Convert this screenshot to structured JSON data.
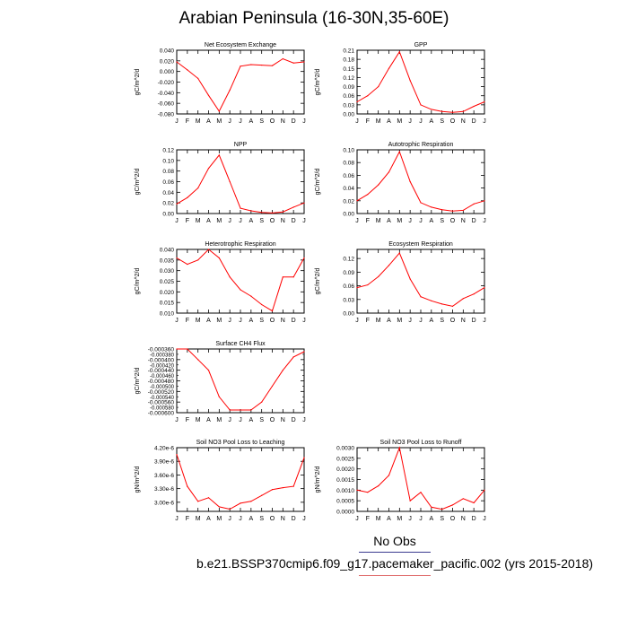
{
  "title": "Arabian Peninsula (16-30N,35-60E)",
  "legend": {
    "obs_label": "No Obs",
    "case_label": "b.e21.BSSP370cmip6.f09_g17.pacemaker_pacific.002 (yrs 2015-2018)"
  },
  "colors": {
    "series": "#ff0000",
    "axis": "#000000"
  },
  "months": [
    "J",
    "F",
    "M",
    "A",
    "M",
    "J",
    "J",
    "A",
    "S",
    "O",
    "N",
    "D",
    "J"
  ],
  "chart_data": [
    {
      "type": "line",
      "title": "Net Ecosystem Exchange",
      "ylabel": "gC/m^2/d",
      "ylim": [
        -0.08,
        0.04
      ],
      "yticks": [
        -0.08,
        -0.06,
        -0.04,
        -0.02,
        0.0,
        0.02,
        0.04
      ],
      "ytick_labels": [
        "-0.080",
        "-0.060",
        "-0.040",
        "-0.020",
        "0.000",
        "0.020",
        "0.040"
      ],
      "x": [
        "J",
        "F",
        "M",
        "A",
        "M",
        "J",
        "J",
        "A",
        "S",
        "O",
        "N",
        "D",
        "J"
      ],
      "values": [
        0.018,
        0.003,
        -0.013,
        -0.045,
        -0.075,
        -0.035,
        0.01,
        0.013,
        0.012,
        0.011,
        0.024,
        0.016,
        0.018
      ]
    },
    {
      "type": "line",
      "title": "GPP",
      "ylabel": "gC/m^2/d",
      "ylim": [
        0.0,
        0.21
      ],
      "yticks": [
        0.0,
        0.03,
        0.06,
        0.09,
        0.12,
        0.15,
        0.18,
        0.21
      ],
      "ytick_labels": [
        "0.00",
        "0.03",
        "0.06",
        "0.09",
        "0.12",
        "0.15",
        "0.18",
        "0.21"
      ],
      "x": [
        "J",
        "F",
        "M",
        "A",
        "M",
        "J",
        "J",
        "A",
        "S",
        "O",
        "N",
        "D",
        "J"
      ],
      "values": [
        0.04,
        0.06,
        0.09,
        0.15,
        0.205,
        0.11,
        0.03,
        0.015,
        0.008,
        0.005,
        0.008,
        0.025,
        0.04
      ]
    },
    {
      "type": "line",
      "title": "NPP",
      "ylabel": "gC/m^2/d",
      "ylim": [
        0.0,
        0.12
      ],
      "yticks": [
        0.0,
        0.02,
        0.04,
        0.06,
        0.08,
        0.1,
        0.12
      ],
      "ytick_labels": [
        "0.00",
        "0.02",
        "0.04",
        "0.06",
        "0.08",
        "0.10",
        "0.12"
      ],
      "x": [
        "J",
        "F",
        "M",
        "A",
        "M",
        "J",
        "J",
        "A",
        "S",
        "O",
        "N",
        "D",
        "J"
      ],
      "values": [
        0.018,
        0.03,
        0.048,
        0.085,
        0.11,
        0.06,
        0.01,
        0.005,
        0.002,
        0.001,
        0.003,
        0.012,
        0.02
      ]
    },
    {
      "type": "line",
      "title": "Autotrophic Respiration",
      "ylabel": "gC/m^2/d",
      "ylim": [
        0.0,
        0.1
      ],
      "yticks": [
        0.0,
        0.02,
        0.04,
        0.06,
        0.08,
        0.1
      ],
      "ytick_labels": [
        "0.00",
        "0.02",
        "0.04",
        "0.06",
        "0.08",
        "0.10"
      ],
      "x": [
        "J",
        "F",
        "M",
        "A",
        "M",
        "J",
        "J",
        "A",
        "S",
        "O",
        "N",
        "D",
        "J"
      ],
      "values": [
        0.02,
        0.03,
        0.045,
        0.065,
        0.097,
        0.05,
        0.017,
        0.01,
        0.006,
        0.004,
        0.005,
        0.015,
        0.02
      ]
    },
    {
      "type": "line",
      "title": "Heterotrophic Respiration",
      "ylabel": "gC/m^2/d",
      "ylim": [
        0.01,
        0.04
      ],
      "yticks": [
        0.01,
        0.015,
        0.02,
        0.025,
        0.03,
        0.035,
        0.04
      ],
      "ytick_labels": [
        "0.010",
        "0.015",
        "0.020",
        "0.025",
        "0.030",
        "0.035",
        "0.040"
      ],
      "x": [
        "J",
        "F",
        "M",
        "A",
        "M",
        "J",
        "J",
        "A",
        "S",
        "O",
        "N",
        "D",
        "J"
      ],
      "values": [
        0.036,
        0.033,
        0.035,
        0.04,
        0.036,
        0.027,
        0.021,
        0.018,
        0.014,
        0.011,
        0.027,
        0.027,
        0.036
      ]
    },
    {
      "type": "line",
      "title": "Ecosystem Respiration",
      "ylabel": "gC/m^2/d",
      "ylim": [
        0.0,
        0.14
      ],
      "yticks": [
        0.0,
        0.03,
        0.06,
        0.09,
        0.12
      ],
      "ytick_labels": [
        "0.00",
        "0.03",
        "0.06",
        "0.09",
        "0.12"
      ],
      "x": [
        "J",
        "F",
        "M",
        "A",
        "M",
        "J",
        "J",
        "A",
        "S",
        "O",
        "N",
        "D",
        "J"
      ],
      "values": [
        0.056,
        0.062,
        0.08,
        0.105,
        0.132,
        0.075,
        0.036,
        0.027,
        0.02,
        0.015,
        0.032,
        0.042,
        0.056
      ]
    },
    {
      "type": "line",
      "title": "Surface CH4 Flux",
      "ylabel": "gC/m^2/d",
      "ylim": [
        -0.0006,
        -0.00036
      ],
      "yticks": [
        -0.0006,
        -0.00056,
        -0.00052,
        -0.00048,
        -0.00044,
        -0.0004,
        -0.00036
      ],
      "ytick_labels": [
        "-0.000600",
        "-0.000560",
        "-0.000520",
        "-0.000480",
        "-0.000440",
        "-0.000400",
        "-0.000360"
      ],
      "minor_yticks": [
        -0.00058,
        -0.00054,
        -0.0005,
        -0.00046,
        -0.00042,
        -0.00038
      ],
      "minor_ytick_labels": [
        "-0.000580",
        "-0.000540",
        "-0.000500",
        "-0.000460",
        "-0.000420",
        "-0.000380"
      ],
      "x": [
        "J",
        "F",
        "M",
        "A",
        "M",
        "J",
        "J",
        "A",
        "S",
        "O",
        "N",
        "D",
        "J"
      ],
      "values": [
        -0.00036,
        -0.00036,
        -0.0004,
        -0.00044,
        -0.00054,
        -0.00059,
        -0.00059,
        -0.00059,
        -0.00056,
        -0.0005,
        -0.00044,
        -0.00039,
        -0.00037
      ]
    },
    {
      "type": "line",
      "title": "Soil NO3 Pool Loss to Leaching",
      "ylabel": "gN/m^2/d",
      "ylim": [
        2.8e-06,
        4.2e-06
      ],
      "yticks": [
        3e-06,
        3.3e-06,
        3.6e-06,
        3.9e-06,
        4.2e-06
      ],
      "ytick_labels": [
        "3.00e-6",
        "3.30e-6",
        "3.60e-6",
        "3.90e-6",
        "4.20e-6"
      ],
      "x": [
        "J",
        "F",
        "M",
        "A",
        "M",
        "J",
        "J",
        "A",
        "S",
        "O",
        "N",
        "D",
        "J"
      ],
      "values": [
        4.05e-06,
        3.35e-06,
        3.02e-06,
        3.1e-06,
        2.9e-06,
        2.85e-06,
        2.98e-06,
        3.02e-06,
        3.15e-06,
        3.28e-06,
        3.32e-06,
        3.35e-06,
        3.98e-06
      ]
    },
    {
      "type": "line",
      "title": "Soil NO3 Pool Loss to Runoff",
      "ylabel": "gN/m^2/d",
      "ylim": [
        0.0,
        0.003
      ],
      "yticks": [
        0.0,
        0.0005,
        0.001,
        0.0015,
        0.002,
        0.0025,
        0.003
      ],
      "ytick_labels": [
        "0.0000",
        "0.0005",
        "0.0010",
        "0.0015",
        "0.0020",
        "0.0025",
        "0.0030"
      ],
      "x": [
        "J",
        "F",
        "M",
        "A",
        "M",
        "J",
        "J",
        "A",
        "S",
        "O",
        "N",
        "D",
        "J"
      ],
      "values": [
        0.001,
        0.0009,
        0.0012,
        0.0017,
        0.003,
        0.0005,
        0.0009,
        0.0002,
        0.0001,
        0.0003,
        0.0006,
        0.0004,
        0.001
      ]
    }
  ]
}
